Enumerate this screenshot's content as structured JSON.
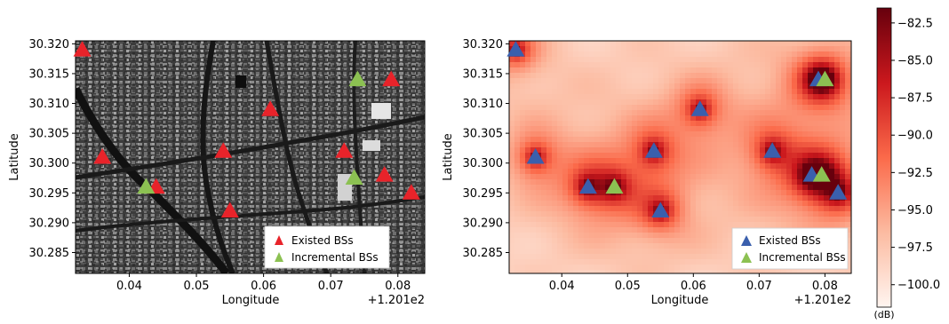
{
  "chart_data": [
    {
      "type": "scatter",
      "panel": "left",
      "background": "grayscale satellite/building map",
      "xlabel": "Longitude",
      "ylabel": "Latitude",
      "xlim": [
        0.032,
        0.084
      ],
      "ylim": [
        30.2815,
        30.3205
      ],
      "x_offset_text": "+1.201e2",
      "x_ticks": [
        0.04,
        0.05,
        0.06,
        0.07,
        0.08
      ],
      "y_ticks": [
        30.285,
        30.29,
        30.295,
        30.3,
        30.305,
        30.31,
        30.315,
        30.32
      ],
      "x_tick_labels": [
        "0.04",
        "0.05",
        "0.06",
        "0.07",
        "0.08"
      ],
      "y_tick_labels": [
        "30.285",
        "30.290",
        "30.295",
        "30.300",
        "30.305",
        "30.310",
        "30.315",
        "30.320"
      ],
      "legend_position": "bottom-right",
      "series": [
        {
          "name": "Existed BSs",
          "color": "#e8232a",
          "marker": "triangle",
          "points": [
            [
              0.033,
              30.319
            ],
            [
              0.036,
              30.301
            ],
            [
              0.044,
              30.296
            ],
            [
              0.054,
              30.302
            ],
            [
              0.055,
              30.292
            ],
            [
              0.061,
              30.309
            ],
            [
              0.072,
              30.302
            ],
            [
              0.078,
              30.298
            ],
            [
              0.079,
              30.314
            ],
            [
              0.082,
              30.295
            ]
          ]
        },
        {
          "name": "Incremental BSs",
          "color": "#8cc152",
          "marker": "triangle",
          "points": [
            [
              0.0425,
              30.296
            ],
            [
              0.074,
              30.314
            ],
            [
              0.0735,
              30.2975
            ]
          ]
        }
      ]
    },
    {
      "type": "heatmap",
      "panel": "right",
      "background": "received signal strength map (dB)",
      "xlabel": "Longitude",
      "ylabel": "Latitude",
      "xlim": [
        0.032,
        0.084
      ],
      "ylim": [
        30.2815,
        30.3205
      ],
      "x_offset_text": "+1.201e2",
      "x_ticks": [
        0.04,
        0.05,
        0.06,
        0.07,
        0.08
      ],
      "y_ticks": [
        30.285,
        30.29,
        30.295,
        30.3,
        30.305,
        30.31,
        30.315,
        30.32
      ],
      "x_tick_labels": [
        "0.04",
        "0.05",
        "0.06",
        "0.07",
        "0.08"
      ],
      "y_tick_labels": [
        "30.285",
        "30.290",
        "30.295",
        "30.300",
        "30.305",
        "30.310",
        "30.315",
        "30.320"
      ],
      "legend_position": "bottom-right",
      "series": [
        {
          "name": "Existed BSs",
          "color": "#3a5fad",
          "marker": "triangle",
          "points": [
            [
              0.033,
              30.319
            ],
            [
              0.036,
              30.301
            ],
            [
              0.044,
              30.296
            ],
            [
              0.054,
              30.302
            ],
            [
              0.055,
              30.292
            ],
            [
              0.061,
              30.309
            ],
            [
              0.072,
              30.302
            ],
            [
              0.078,
              30.298
            ],
            [
              0.079,
              30.314
            ],
            [
              0.082,
              30.295
            ]
          ]
        },
        {
          "name": "Incremental BSs",
          "color": "#8cc152",
          "marker": "triangle",
          "points": [
            [
              0.048,
              30.296
            ],
            [
              0.08,
              30.314
            ],
            [
              0.0795,
              30.298
            ]
          ]
        }
      ],
      "colorbar": {
        "unit": "(dB)",
        "range": [
          -101.5,
          -81.5
        ],
        "ticks": [
          -82.5,
          -85.0,
          -87.5,
          -90.0,
          -92.5,
          -95.0,
          -97.5,
          -100.0
        ],
        "tick_labels": [
          "−82.5",
          "−85.0",
          "−87.5",
          "−90.0",
          "−92.5",
          "−95.0",
          "−97.5",
          "−100.0"
        ],
        "colormap": [
          "#fff5f0",
          "#fcbba1",
          "#fb6a4a",
          "#cb181d",
          "#67000d"
        ]
      }
    }
  ]
}
